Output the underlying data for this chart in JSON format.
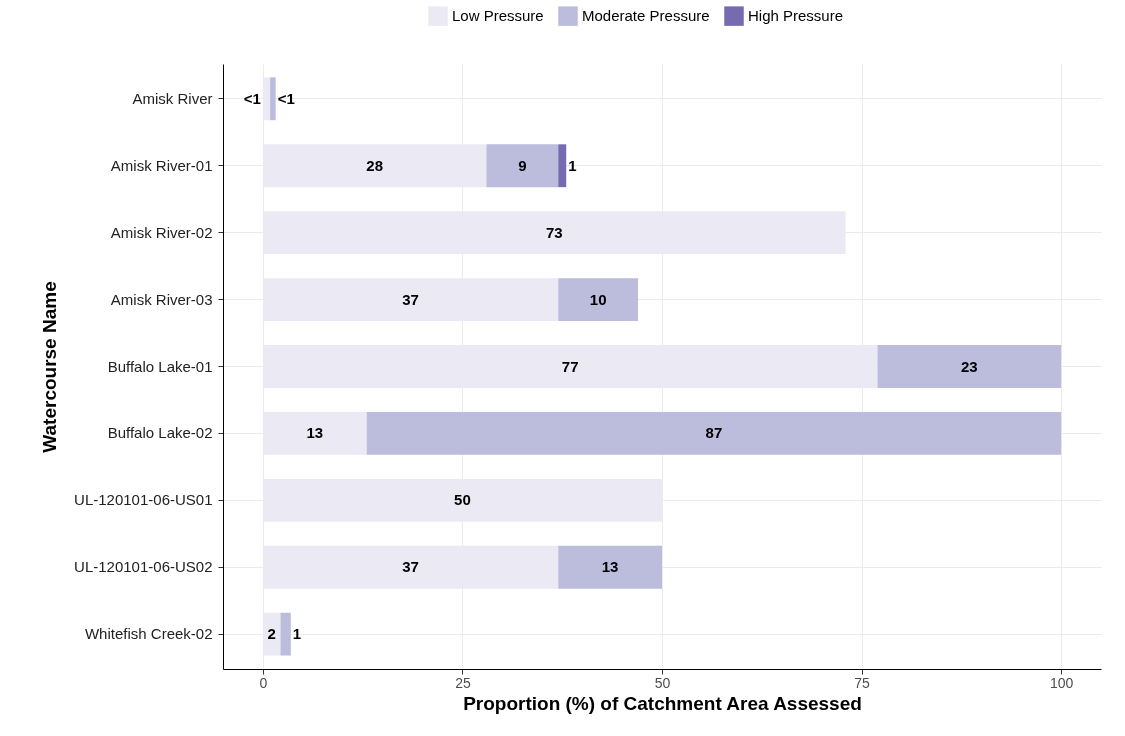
{
  "chart_data": {
    "type": "bar",
    "orientation": "horizontal",
    "stacked": true,
    "xlabel": "Proportion (%) of Catchment Area Assessed",
    "ylabel": "Watercourse Name",
    "categories": [
      "Amisk River",
      "Amisk River-01",
      "Amisk River-02",
      "Amisk River-03",
      "Buffalo Lake-01",
      "Buffalo Lake-02",
      "UL-120101-06-US01",
      "UL-120101-06-US02",
      "Whitefish Creek-02"
    ],
    "series": [
      {
        "name": "Low Pressure",
        "color": "#ebe9f4",
        "values": [
          0.9,
          28,
          73,
          37,
          77,
          13,
          50,
          37,
          2.2
        ],
        "value_labels": [
          "<1",
          "28",
          "73",
          "37",
          "77",
          "13",
          "50",
          "37",
          "2"
        ]
      },
      {
        "name": "Moderate Pressure",
        "color": "#bcbddc",
        "values": [
          0.7,
          9,
          null,
          10,
          23,
          87,
          null,
          13,
          1.3
        ],
        "value_labels": [
          "<1",
          "9",
          null,
          "10",
          "23",
          "87",
          null,
          "13",
          "1"
        ]
      },
      {
        "name": "High Pressure",
        "color": "#756bb1",
        "values": [
          null,
          1,
          null,
          null,
          null,
          null,
          null,
          null,
          null
        ],
        "value_labels": [
          null,
          "1",
          null,
          null,
          null,
          null,
          null,
          null,
          null
        ]
      }
    ],
    "xlim": [
      -5,
      105
    ],
    "xticks": [
      0,
      25,
      50,
      75,
      100
    ],
    "grid": true,
    "legend": "top"
  }
}
